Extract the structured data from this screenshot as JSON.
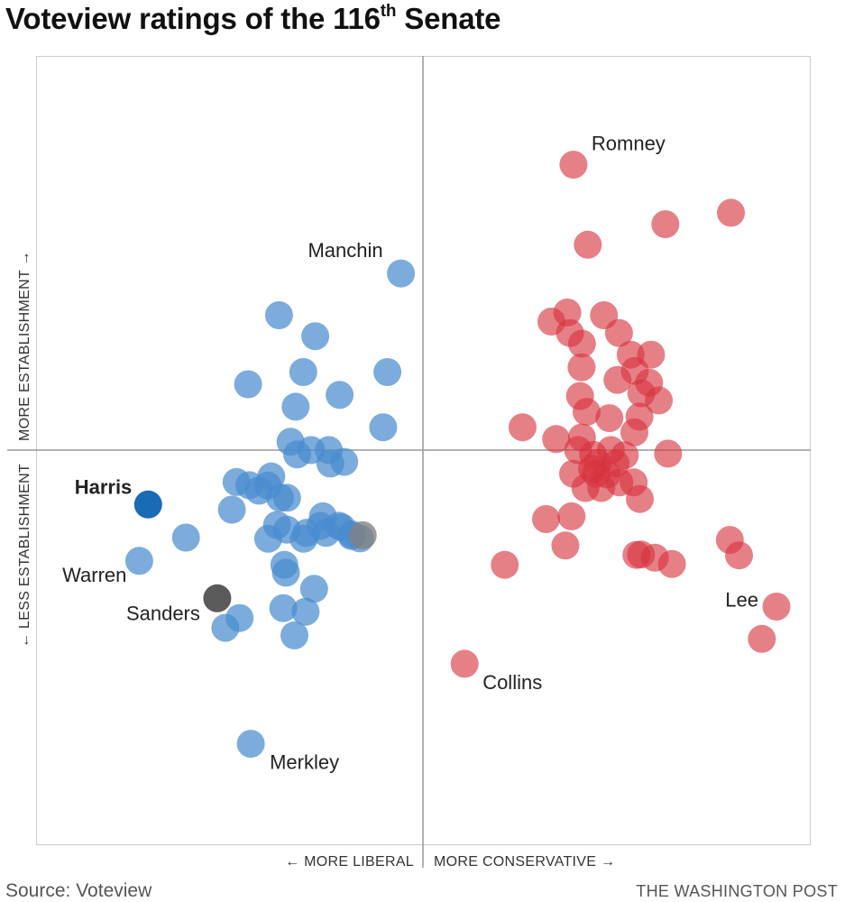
{
  "title": {
    "main": "Voteview ratings of the 116",
    "superscript": "th",
    "tail": " Senate"
  },
  "footer": {
    "source": "Source: Voteview",
    "credit": "THE WASHINGTON POST"
  },
  "colors": {
    "democrat": "#4a8ccf",
    "democrat_highlight": "#1a6bb5",
    "republican": "#d6323e",
    "independent": "#808080",
    "independent_highlight": "#5a5a5a",
    "axis": "#999999",
    "frame": "#cccccc"
  },
  "chart_data": {
    "type": "scatter",
    "title": "Voteview ratings of the 116th Senate",
    "x_axis_labels": {
      "negative": "← MORE LIBERAL",
      "positive": "MORE CONSERVATIVE →"
    },
    "y_axis_labels": {
      "positive": "MORE ESTABLISHMENT →",
      "negative": "← LESS ESTABLISHMENT"
    },
    "xlim": [
      -1,
      1
    ],
    "ylim": [
      -1,
      1
    ],
    "grid": false,
    "legend": "none",
    "series": [
      {
        "party": "democrat",
        "points": [
          [
            -0.057,
            0.448
          ],
          [
            -0.373,
            0.342
          ],
          [
            -0.279,
            0.289
          ],
          [
            -0.453,
            0.167
          ],
          [
            -0.31,
            0.198
          ],
          [
            -0.092,
            0.198
          ],
          [
            -0.216,
            0.14
          ],
          [
            -0.33,
            0.11
          ],
          [
            -0.103,
            0.058
          ],
          [
            -0.343,
            0.021
          ],
          [
            -0.326,
            -0.011
          ],
          [
            -0.244,
            0.0
          ],
          [
            -0.24,
            -0.034
          ],
          [
            -0.204,
            -0.03
          ],
          [
            -0.483,
            -0.081
          ],
          [
            -0.45,
            -0.089
          ],
          [
            -0.393,
            -0.067
          ],
          [
            -0.425,
            -0.103
          ],
          [
            -0.352,
            -0.121
          ],
          [
            -0.402,
            -0.09
          ],
          [
            -0.37,
            -0.121
          ],
          [
            -0.495,
            -0.151
          ],
          [
            -0.614,
            -0.222
          ],
          [
            -0.735,
            -0.281
          ],
          [
            -0.378,
            -0.19
          ],
          [
            -0.352,
            -0.202
          ],
          [
            -0.259,
            -0.168
          ],
          [
            -0.266,
            -0.192
          ],
          [
            -0.218,
            -0.192
          ],
          [
            -0.309,
            -0.225
          ],
          [
            -0.251,
            -0.21
          ],
          [
            -0.185,
            -0.214
          ],
          [
            -0.163,
            -0.224
          ],
          [
            -0.359,
            -0.291
          ],
          [
            -0.355,
            -0.311
          ],
          [
            -0.282,
            -0.352
          ],
          [
            -0.475,
            -0.426
          ],
          [
            -0.512,
            -0.451
          ],
          [
            -0.362,
            -0.401
          ],
          [
            -0.304,
            -0.41
          ],
          [
            -0.333,
            -0.47
          ],
          [
            -0.446,
            -0.745
          ],
          [
            -0.401,
            -0.225
          ],
          [
            -0.302,
            -0.21
          ],
          [
            -0.185,
            -0.218
          ],
          [
            -0.21,
            -0.196
          ],
          [
            -0.29,
            0.0
          ]
        ]
      },
      {
        "party": "democrat_highlight",
        "name": "Harris",
        "points": [
          [
            -0.712,
            -0.138
          ]
        ]
      },
      {
        "party": "independent",
        "points": [
          [
            -0.156,
            -0.216
          ]
        ]
      },
      {
        "party": "independent_highlight",
        "name": "Sanders",
        "points": [
          [
            -0.533,
            -0.376
          ]
        ]
      },
      {
        "party": "republican",
        "points": [
          [
            0.39,
            0.724
          ],
          [
            0.798,
            0.602
          ],
          [
            0.628,
            0.573
          ],
          [
            0.427,
            0.521
          ],
          [
            0.374,
            0.349
          ],
          [
            0.469,
            0.342
          ],
          [
            0.333,
            0.326
          ],
          [
            0.381,
            0.297
          ],
          [
            0.508,
            0.297
          ],
          [
            0.412,
            0.27
          ],
          [
            0.538,
            0.242
          ],
          [
            0.591,
            0.242
          ],
          [
            0.411,
            0.21
          ],
          [
            0.549,
            0.201
          ],
          [
            0.504,
            0.178
          ],
          [
            0.586,
            0.171
          ],
          [
            0.566,
            0.144
          ],
          [
            0.407,
            0.137
          ],
          [
            0.611,
            0.126
          ],
          [
            0.424,
            0.097
          ],
          [
            0.483,
            0.081
          ],
          [
            0.561,
            0.085
          ],
          [
            0.258,
            0.058
          ],
          [
            0.548,
            0.045
          ],
          [
            0.345,
            0.028
          ],
          [
            0.635,
            -0.009
          ],
          [
            0.402,
            0.0
          ],
          [
            0.441,
            -0.012
          ],
          [
            0.487,
            0.0
          ],
          [
            0.453,
            -0.033
          ],
          [
            0.389,
            -0.06
          ],
          [
            0.499,
            -0.034
          ],
          [
            0.448,
            -0.06
          ],
          [
            0.421,
            -0.096
          ],
          [
            0.462,
            -0.096
          ],
          [
            0.509,
            -0.082
          ],
          [
            0.546,
            -0.082
          ],
          [
            0.562,
            -0.124
          ],
          [
            0.385,
            -0.168
          ],
          [
            0.319,
            -0.175
          ],
          [
            0.369,
            -0.242
          ],
          [
            0.565,
            -0.265
          ],
          [
            0.601,
            -0.273
          ],
          [
            0.645,
            -0.289
          ],
          [
            0.795,
            -0.228
          ],
          [
            0.819,
            -0.267
          ],
          [
            0.212,
            -0.291
          ],
          [
            0.916,
            -0.397
          ],
          [
            0.878,
            -0.479
          ],
          [
            0.477,
            -0.062
          ],
          [
            0.438,
            -0.048
          ],
          [
            0.412,
            0.032
          ],
          [
            0.523,
            -0.013
          ],
          [
            0.108,
            -0.542
          ],
          [
            0.553,
            -0.266
          ]
        ]
      }
    ],
    "annotations": [
      {
        "text": "Romney",
        "x": 0.39,
        "y": 0.724,
        "weight": "normal"
      },
      {
        "text": "Manchin",
        "x": -0.057,
        "y": 0.448,
        "weight": "normal"
      },
      {
        "text": "Harris",
        "x": -0.712,
        "y": -0.138,
        "weight": "bold"
      },
      {
        "text": "Warren",
        "x": -0.735,
        "y": -0.281,
        "weight": "normal"
      },
      {
        "text": "Sanders",
        "x": -0.533,
        "y": -0.376,
        "weight": "normal"
      },
      {
        "text": "Lee",
        "x": 0.916,
        "y": -0.397,
        "weight": "normal"
      },
      {
        "text": "Collins",
        "x": 0.108,
        "y": -0.542,
        "weight": "normal"
      },
      {
        "text": "Merkley",
        "x": -0.446,
        "y": -0.745,
        "weight": "normal"
      }
    ]
  }
}
